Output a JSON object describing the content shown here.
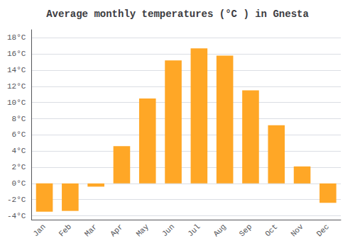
{
  "chart_data": {
    "type": "bar",
    "title": "Average monthly temperatures (°C ) in Gnesta",
    "categories": [
      "Jan",
      "Feb",
      "Mar",
      "Apr",
      "May",
      "Jun",
      "Jul",
      "Aug",
      "Sep",
      "Oct",
      "Nov",
      "Dec"
    ],
    "values": [
      -3.5,
      -3.4,
      -0.4,
      4.6,
      10.5,
      15.2,
      16.7,
      15.8,
      11.5,
      7.2,
      2.1,
      -2.4
    ],
    "color": "#FFA726",
    "ylim": [
      -4.5,
      19
    ],
    "yticks": [
      {
        "value": -4,
        "label": "-4°C"
      },
      {
        "value": -2,
        "label": "-2°C"
      },
      {
        "value": 0,
        "label": "0°C"
      },
      {
        "value": 2,
        "label": "2°C"
      },
      {
        "value": 4,
        "label": "4°C"
      },
      {
        "value": 6,
        "label": "6°C"
      },
      {
        "value": 8,
        "label": "8°C"
      },
      {
        "value": 10,
        "label": "10°C"
      },
      {
        "value": 12,
        "label": "12°C"
      },
      {
        "value": 14,
        "label": "14°C"
      },
      {
        "value": 16,
        "label": "16°C"
      },
      {
        "value": 18,
        "label": "18°C"
      }
    ],
    "grid": true
  }
}
